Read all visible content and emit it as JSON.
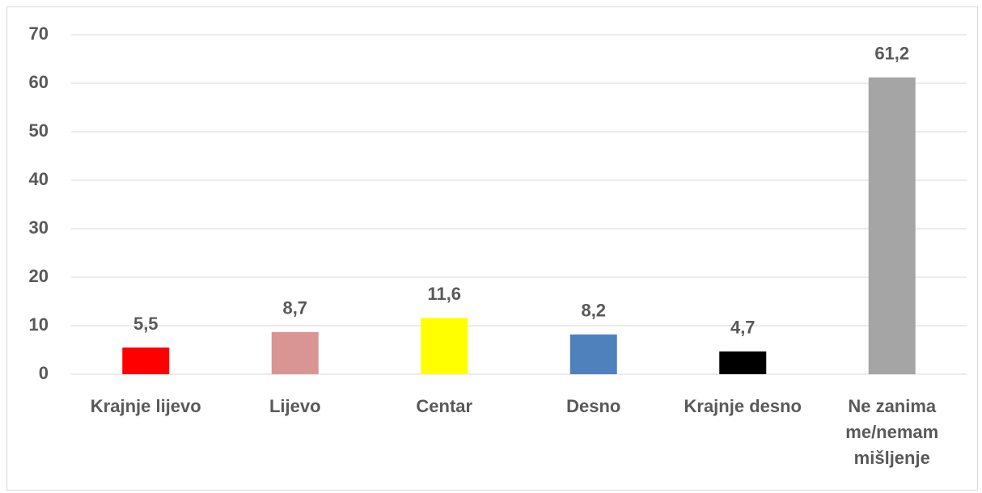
{
  "chart_data": {
    "type": "bar",
    "categories": [
      "Krajnje lijevo",
      "Lijevo",
      "Centar",
      "Desno",
      "Krajnje desno",
      "Ne zanima me/nemam mišljenje"
    ],
    "values": [
      5.5,
      8.7,
      11.6,
      8.2,
      4.7,
      61.2
    ],
    "value_labels": [
      "5,5",
      "8,7",
      "11,6",
      "8,2",
      "4,7",
      "61,2"
    ],
    "colors": [
      "#ff0000",
      "#d99594",
      "#ffff00",
      "#4f81bd",
      "#000000",
      "#a5a5a5"
    ],
    "ylim": [
      0,
      70
    ],
    "yticks": [
      0,
      10,
      20,
      30,
      40,
      50,
      60,
      70
    ],
    "grid": true
  }
}
